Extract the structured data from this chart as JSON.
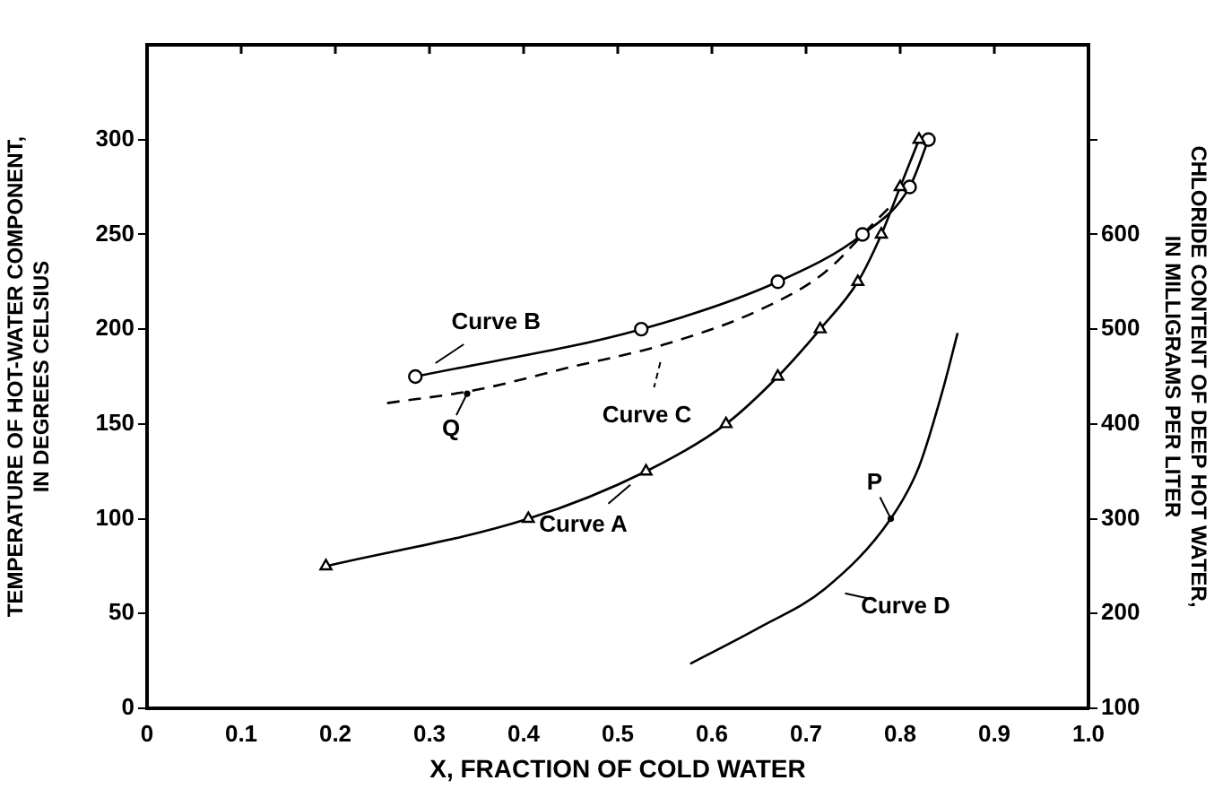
{
  "chart_data": {
    "type": "line",
    "xlabel": "X, FRACTION OF COLD WATER",
    "ylabel": "TEMPERATURE OF HOT-WATER COMPONENT,\nIN DEGREES CELSIUS",
    "y2label": "CHLORIDE CONTENT OF DEEP HOT WATER,\nIN MILLIGRAMS PER LITER",
    "xlim": [
      0,
      1
    ],
    "xticks": [
      0,
      0.1,
      0.2,
      0.3,
      0.4,
      0.5,
      0.6,
      0.7,
      0.8,
      0.9,
      {
        "value": 1,
        "label": "1.0"
      }
    ],
    "ylim": [
      0,
      350
    ],
    "yticks": [
      0,
      50,
      100,
      150,
      200,
      250,
      300
    ],
    "y2lim": [
      100,
      800
    ],
    "y2ticks": [
      100,
      200,
      300,
      400,
      500,
      600,
      {
        "value": 700,
        "label": null
      }
    ],
    "grid": false,
    "legend": "center",
    "line_style": "solid",
    "series": [
      {
        "name": "Curve A",
        "color": "#000000",
        "marker": "triangle",
        "x": [
          0.19,
          0.405,
          0.53,
          0.615,
          0.67,
          0.715,
          0.755,
          0.78,
          0.8,
          0.82
        ],
        "values": [
          75,
          100,
          125,
          150,
          175,
          200,
          225,
          250,
          275,
          300
        ]
      },
      {
        "name": "Curve B",
        "color": "#000000",
        "marker": "circle",
        "x": [
          0.285,
          0.525,
          0.67,
          0.76,
          0.81,
          0.83
        ],
        "values": [
          175,
          200,
          225,
          250,
          275,
          300
        ]
      },
      {
        "name": "Curve C",
        "color": "#000000",
        "marker": "none",
        "line_style": "dashed",
        "x": [
          0.255,
          0.35,
          0.45,
          0.55,
          0.65,
          0.72,
          0.77,
          0.79
        ],
        "values": [
          161,
          168,
          180,
          192,
          210,
          230,
          255,
          265
        ]
      },
      {
        "name": "Curve D",
        "color": "#000000",
        "marker": "none",
        "axis": "y2",
        "x": [
          0.577,
          0.65,
          0.72,
          0.79,
          0.82,
          0.845,
          0.861
        ],
        "values": [
          147,
          185,
          226,
          300,
          355,
          435,
          496
        ]
      }
    ],
    "annotations": [
      {
        "text": "P",
        "x": 0.79,
        "y": 100
      },
      {
        "text": "Q",
        "x": 0.34,
        "y": 166
      }
    ]
  }
}
